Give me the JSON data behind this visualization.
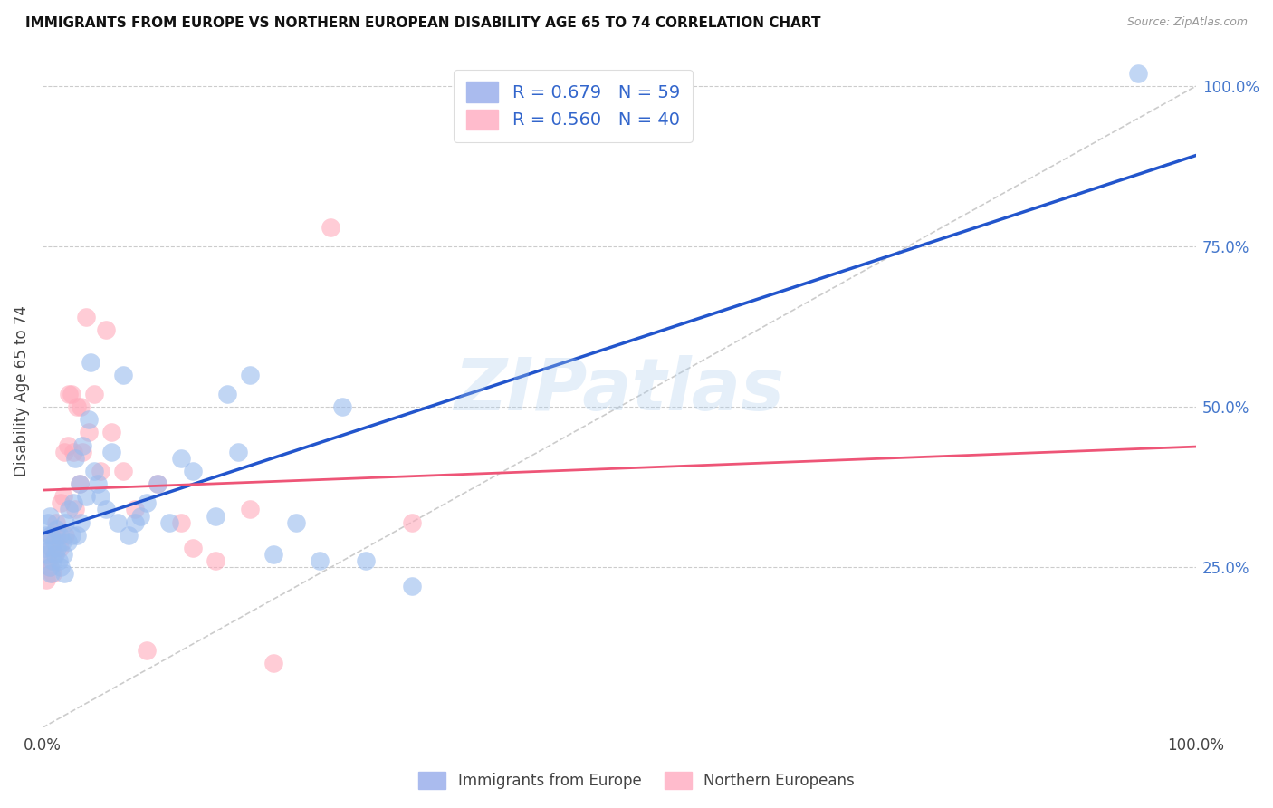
{
  "title": "IMMIGRANTS FROM EUROPE VS NORTHERN EUROPEAN DISABILITY AGE 65 TO 74 CORRELATION CHART",
  "source": "Source: ZipAtlas.com",
  "ylabel": "Disability Age 65 to 74",
  "xmin": 0.0,
  "xmax": 1.0,
  "ymin": 0.0,
  "ymax": 1.05,
  "ytick_vals_right": [
    0.25,
    0.5,
    0.75,
    1.0
  ],
  "ytick_labels_right": [
    "25.0%",
    "50.0%",
    "75.0%",
    "100.0%"
  ],
  "grid_color": "#cccccc",
  "background_color": "#ffffff",
  "watermark": "ZIPatlas",
  "legend_labels": [
    "Immigrants from Europe",
    "Northern Europeans"
  ],
  "legend_R": [
    0.679,
    0.56
  ],
  "legend_N": [
    59,
    40
  ],
  "blue_scatter_color": "#99bbee",
  "pink_scatter_color": "#ffaabb",
  "blue_line_color": "#2255cc",
  "pink_line_color": "#ee5577",
  "diag_color": "#cccccc",
  "blue_scatter_x": [
    0.002,
    0.003,
    0.004,
    0.005,
    0.006,
    0.006,
    0.007,
    0.007,
    0.008,
    0.009,
    0.01,
    0.011,
    0.012,
    0.013,
    0.014,
    0.015,
    0.016,
    0.017,
    0.018,
    0.019,
    0.02,
    0.022,
    0.023,
    0.025,
    0.027,
    0.028,
    0.03,
    0.032,
    0.033,
    0.035,
    0.038,
    0.04,
    0.042,
    0.045,
    0.048,
    0.05,
    0.055,
    0.06,
    0.065,
    0.07,
    0.075,
    0.08,
    0.085,
    0.09,
    0.1,
    0.11,
    0.12,
    0.13,
    0.15,
    0.16,
    0.17,
    0.18,
    0.2,
    0.22,
    0.24,
    0.26,
    0.28,
    0.32,
    0.95
  ],
  "blue_scatter_y": [
    0.28,
    0.3,
    0.27,
    0.32,
    0.25,
    0.33,
    0.3,
    0.24,
    0.28,
    0.26,
    0.29,
    0.27,
    0.31,
    0.28,
    0.26,
    0.3,
    0.25,
    0.29,
    0.27,
    0.24,
    0.32,
    0.29,
    0.34,
    0.3,
    0.35,
    0.42,
    0.3,
    0.38,
    0.32,
    0.44,
    0.36,
    0.48,
    0.57,
    0.4,
    0.38,
    0.36,
    0.34,
    0.43,
    0.32,
    0.55,
    0.3,
    0.32,
    0.33,
    0.35,
    0.38,
    0.32,
    0.42,
    0.4,
    0.33,
    0.52,
    0.43,
    0.55,
    0.27,
    0.32,
    0.26,
    0.5,
    0.26,
    0.22,
    1.02
  ],
  "pink_scatter_x": [
    0.003,
    0.005,
    0.006,
    0.007,
    0.008,
    0.009,
    0.01,
    0.012,
    0.013,
    0.015,
    0.016,
    0.018,
    0.019,
    0.02,
    0.022,
    0.023,
    0.025,
    0.027,
    0.028,
    0.03,
    0.032,
    0.033,
    0.035,
    0.038,
    0.04,
    0.045,
    0.05,
    0.055,
    0.06,
    0.07,
    0.08,
    0.09,
    0.1,
    0.12,
    0.13,
    0.15,
    0.18,
    0.2,
    0.25,
    0.32
  ],
  "pink_scatter_y": [
    0.23,
    0.26,
    0.25,
    0.3,
    0.28,
    0.24,
    0.27,
    0.32,
    0.3,
    0.28,
    0.35,
    0.36,
    0.43,
    0.3,
    0.44,
    0.52,
    0.52,
    0.43,
    0.34,
    0.5,
    0.38,
    0.5,
    0.43,
    0.64,
    0.46,
    0.52,
    0.4,
    0.62,
    0.46,
    0.4,
    0.34,
    0.12,
    0.38,
    0.32,
    0.28,
    0.26,
    0.34,
    0.1,
    0.78,
    0.32
  ]
}
